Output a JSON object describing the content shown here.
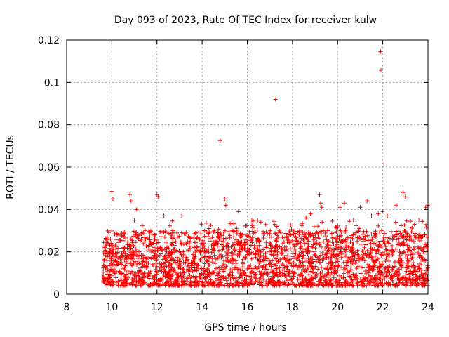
{
  "chart_data": {
    "type": "scatter",
    "title": "Day 093 of 2023, Rate Of TEC Index for receiver kulw",
    "xlabel": "GPS time / hours",
    "ylabel": "ROTI / TECUs",
    "xlim": [
      8,
      24
    ],
    "ylim": [
      0,
      0.12
    ],
    "xticks": [
      "8",
      "10",
      "12",
      "14",
      "16",
      "18",
      "20",
      "22",
      "24"
    ],
    "yticks": [
      "0",
      "0.02",
      "0.04",
      "0.06",
      "0.08",
      "0.1",
      "0.12"
    ],
    "grid": true,
    "marker": "+",
    "colors": {
      "points": "#ff0000",
      "grid": "#a0a0a0",
      "axis": "#000000"
    },
    "series": [
      {
        "name": "ROTI",
        "x": [
          14.8,
          17.25,
          21.9,
          21.92,
          22.05,
          9.8,
          10.0,
          10.05,
          10.8,
          10.85,
          11.1,
          12.0,
          12.05,
          12.3,
          13.1,
          14.1,
          14.3,
          14.7,
          15.0,
          15.05,
          15.6,
          16.2,
          16.6,
          17.3,
          18.6,
          18.8,
          19.2,
          19.25,
          19.3,
          20.1,
          20.3,
          20.7,
          21.0,
          21.3,
          21.5,
          21.8,
          22.0,
          22.2,
          22.6,
          22.9,
          23.0,
          23.4,
          23.6,
          23.9,
          24.0
        ],
        "y": [
          0.0725,
          0.092,
          0.1145,
          0.1058,
          0.0615,
          0.026,
          0.0485,
          0.045,
          0.047,
          0.044,
          0.04,
          0.047,
          0.046,
          0.037,
          0.037,
          0.03,
          0.031,
          0.029,
          0.045,
          0.042,
          0.039,
          0.035,
          0.034,
          0.032,
          0.036,
          0.038,
          0.047,
          0.043,
          0.041,
          0.041,
          0.043,
          0.035,
          0.041,
          0.044,
          0.037,
          0.038,
          0.039,
          0.037,
          0.042,
          0.048,
          0.046,
          0.033,
          0.035,
          0.041,
          0.042
        ]
      }
    ],
    "density": {
      "description": "dense band of ROTI samples across the observed time span",
      "x_range": [
        9.6,
        24.0
      ],
      "typical_range": [
        0.004,
        0.03
      ]
    }
  }
}
